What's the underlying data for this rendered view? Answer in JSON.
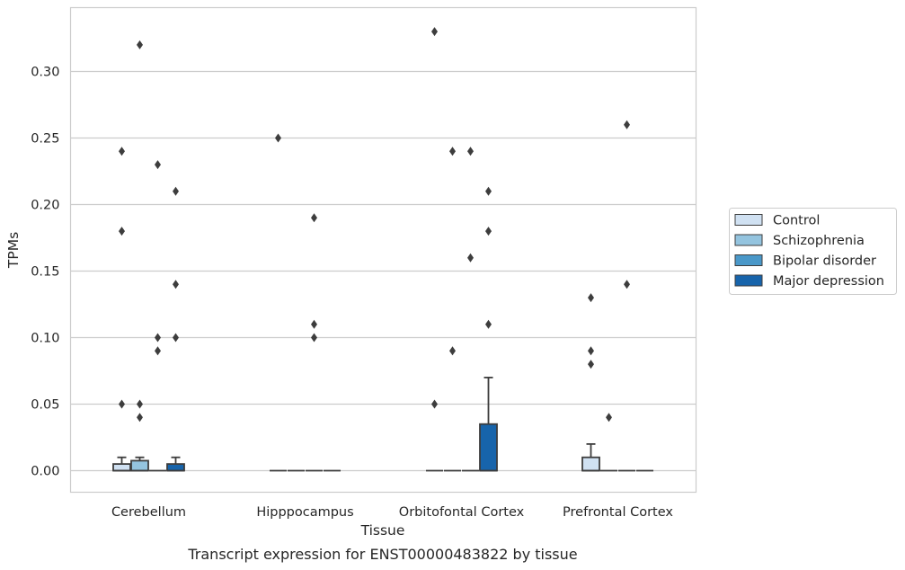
{
  "caption": "Transcript expression for ENST00000483822 by tissue",
  "chart_data": {
    "type": "box",
    "xlabel": "Tissue",
    "ylabel": "TPMs",
    "ylim": [
      -0.016,
      0.347
    ],
    "yticks": [
      "0.00",
      "0.05",
      "0.10",
      "0.15",
      "0.20",
      "0.25",
      "0.30"
    ],
    "grid": "horizontal",
    "legend_position": "right",
    "categories": [
      "Cerebellum",
      "Hipppocampus",
      "Orbitofontal Cortex",
      "Prefrontal Cortex"
    ],
    "series": [
      {
        "name": "Control",
        "color": "#d0e1f2",
        "boxes": [
          {
            "q1": 0.0,
            "median": 0.0,
            "q3": 0.005,
            "whisker_low": 0.0,
            "whisker_high": 0.01,
            "outliers": [
              0.24,
              0.18,
              0.05
            ]
          },
          {
            "q1": 0.0,
            "median": 0.0,
            "q3": 0.0,
            "whisker_low": 0.0,
            "whisker_high": 0.0,
            "outliers": [
              0.25
            ]
          },
          {
            "q1": 0.0,
            "median": 0.0,
            "q3": 0.0,
            "whisker_low": 0.0,
            "whisker_high": 0.0,
            "outliers": [
              0.33,
              0.05
            ]
          },
          {
            "q1": 0.0,
            "median": 0.0,
            "q3": 0.01,
            "whisker_low": 0.0,
            "whisker_high": 0.02,
            "outliers": [
              0.13,
              0.09,
              0.08
            ]
          }
        ]
      },
      {
        "name": "Schizophrenia",
        "color": "#94c4df",
        "boxes": [
          {
            "q1": 0.0,
            "median": 0.0,
            "q3": 0.0075,
            "whisker_low": 0.0,
            "whisker_high": 0.01,
            "outliers": [
              0.32,
              0.05,
              0.04
            ]
          },
          {
            "q1": 0.0,
            "median": 0.0,
            "q3": 0.0,
            "whisker_low": 0.0,
            "whisker_high": 0.0,
            "outliers": []
          },
          {
            "q1": 0.0,
            "median": 0.0,
            "q3": 0.0,
            "whisker_low": 0.0,
            "whisker_high": 0.0,
            "outliers": [
              0.24,
              0.09
            ]
          },
          {
            "q1": 0.0,
            "median": 0.0,
            "q3": 0.0,
            "whisker_low": 0.0,
            "whisker_high": 0.0,
            "outliers": [
              0.04
            ]
          }
        ]
      },
      {
        "name": "Bipolar disorder",
        "color": "#4a98c9",
        "boxes": [
          {
            "q1": 0.0,
            "median": 0.0,
            "q3": 0.0,
            "whisker_low": 0.0,
            "whisker_high": 0.0,
            "outliers": [
              0.23,
              0.1,
              0.09
            ]
          },
          {
            "q1": 0.0,
            "median": 0.0,
            "q3": 0.0,
            "whisker_low": 0.0,
            "whisker_high": 0.0,
            "outliers": [
              0.19,
              0.11,
              0.1
            ]
          },
          {
            "q1": 0.0,
            "median": 0.0,
            "q3": 0.0,
            "whisker_low": 0.0,
            "whisker_high": 0.0,
            "outliers": [
              0.24,
              0.16
            ]
          },
          {
            "q1": 0.0,
            "median": 0.0,
            "q3": 0.0,
            "whisker_low": 0.0,
            "whisker_high": 0.0,
            "outliers": [
              0.26,
              0.14
            ]
          }
        ]
      },
      {
        "name": "Major depression",
        "color": "#1764ab",
        "boxes": [
          {
            "q1": 0.0,
            "median": 0.0,
            "q3": 0.005,
            "whisker_low": 0.0,
            "whisker_high": 0.01,
            "outliers": [
              0.21,
              0.14,
              0.1
            ]
          },
          {
            "q1": 0.0,
            "median": 0.0,
            "q3": 0.0,
            "whisker_low": 0.0,
            "whisker_high": 0.0,
            "outliers": []
          },
          {
            "q1": 0.0,
            "median": 0.0,
            "q3": 0.035,
            "whisker_low": 0.0,
            "whisker_high": 0.07,
            "outliers": [
              0.21,
              0.18,
              0.11
            ]
          },
          {
            "q1": 0.0,
            "median": 0.0,
            "q3": 0.0,
            "whisker_low": 0.0,
            "whisker_high": 0.0,
            "outliers": []
          }
        ]
      }
    ]
  }
}
